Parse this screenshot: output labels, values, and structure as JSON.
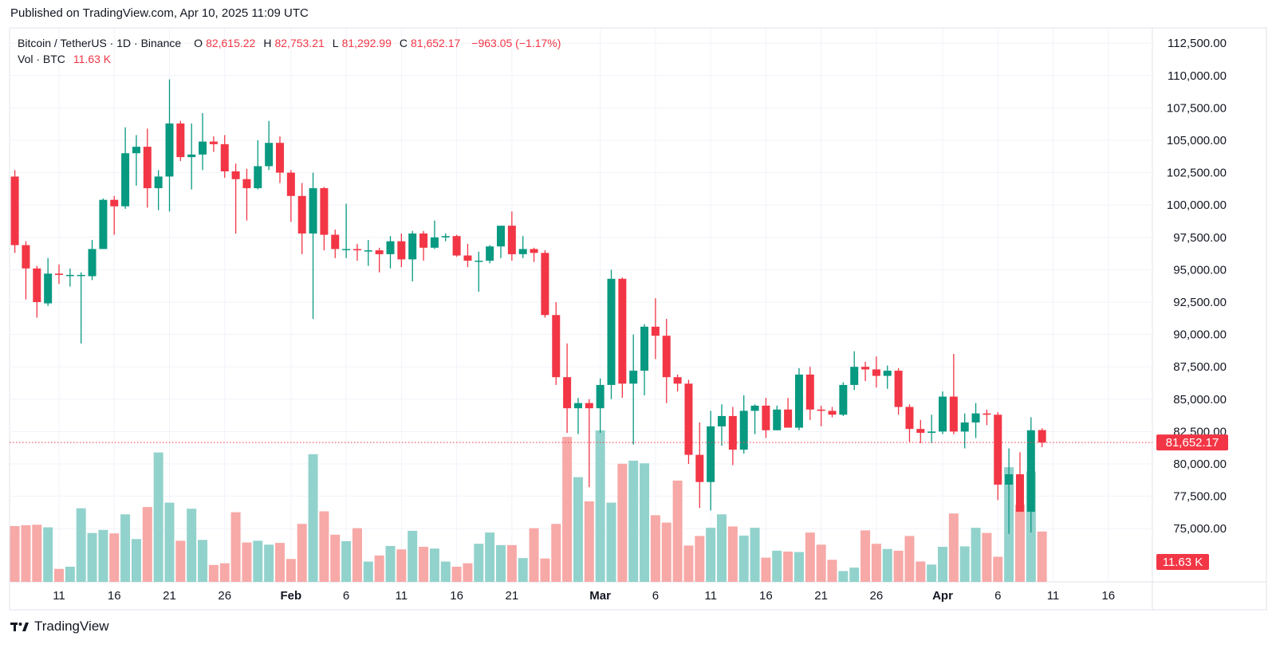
{
  "header": {
    "published": "Published on TradingView.com, Apr 10, 2025 11:09 UTC"
  },
  "legend": {
    "symbol": "Bitcoin / TetherUS · 1D · Binance",
    "open_key": "O",
    "open": "82,615.22",
    "high_key": "H",
    "high": "82,753.21",
    "low_key": "L",
    "low": "81,292.99",
    "close_key": "C",
    "close": "81,652.17",
    "change": "−963.05 (−1.17%)",
    "vol_label": "Vol · BTC",
    "vol_value": "11.63 K"
  },
  "price_tag": "81,652.17",
  "volume_tag": "11.63 K",
  "footer": {
    "brand": "TradingView"
  },
  "colors": {
    "up": "#089981",
    "down": "#f23645",
    "up_vol": "#92d2cc",
    "down_vol": "#f7a9a7"
  },
  "chart_data": {
    "type": "candlestick",
    "y_ticks": [
      "112,500.00",
      "110,000.00",
      "107,500.00",
      "105,000.00",
      "102,500.00",
      "100,000.00",
      "97,500.00",
      "95,000.00",
      "92,500.00",
      "90,000.00",
      "87,500.00",
      "85,000.00",
      "82,500.00",
      "80,000.00",
      "77,500.00",
      "75,000.00"
    ],
    "x_ticks": [
      "11",
      "16",
      "21",
      "26",
      "Feb",
      "6",
      "11",
      "16",
      "21",
      "Mar",
      "6",
      "11",
      "16",
      "21",
      "26",
      "Apr",
      "6",
      "11",
      "16"
    ],
    "x_tick_days": [
      0,
      5,
      10,
      15,
      21,
      26,
      31,
      36,
      41,
      49,
      54,
      59,
      64,
      69,
      74,
      80,
      85,
      90,
      95
    ],
    "y_range": [
      71000,
      113500
    ],
    "candles": [
      {
        "o": 102200,
        "h": 102700,
        "l": 96300,
        "c": 96900,
        "v": 12.9
      },
      {
        "o": 96900,
        "h": 97200,
        "l": 92700,
        "c": 95100,
        "v": 13.1
      },
      {
        "o": 95100,
        "h": 95300,
        "l": 91300,
        "c": 92500,
        "v": 13.2
      },
      {
        "o": 92400,
        "h": 95900,
        "l": 92200,
        "c": 94700,
        "v": 12.6
      },
      {
        "o": 94700,
        "h": 95400,
        "l": 93900,
        "c": 94600,
        "v": 3.0
      },
      {
        "o": 94600,
        "h": 95100,
        "l": 93700,
        "c": 94600,
        "v": 3.5
      },
      {
        "o": 94600,
        "h": 94800,
        "l": 89300,
        "c": 94600,
        "v": 17.0
      },
      {
        "o": 94500,
        "h": 97300,
        "l": 94200,
        "c": 96600,
        "v": 11.3
      },
      {
        "o": 96600,
        "h": 100500,
        "l": 96600,
        "c": 100400,
        "v": 12.0
      },
      {
        "o": 100400,
        "h": 100700,
        "l": 97700,
        "c": 99900,
        "v": 11.2
      },
      {
        "o": 99900,
        "h": 106000,
        "l": 99700,
        "c": 104000,
        "v": 15.6
      },
      {
        "o": 104000,
        "h": 105400,
        "l": 101500,
        "c": 104500,
        "v": 9.9
      },
      {
        "o": 104500,
        "h": 105900,
        "l": 99800,
        "c": 101300,
        "v": 17.3
      },
      {
        "o": 101300,
        "h": 102700,
        "l": 99600,
        "c": 102200,
        "v": 29.9
      },
      {
        "o": 102200,
        "h": 109700,
        "l": 99500,
        "c": 106300,
        "v": 18.3
      },
      {
        "o": 106300,
        "h": 106500,
        "l": 103400,
        "c": 103700,
        "v": 9.5
      },
      {
        "o": 103700,
        "h": 106300,
        "l": 101200,
        "c": 103900,
        "v": 16.9
      },
      {
        "o": 103900,
        "h": 107100,
        "l": 102700,
        "c": 104900,
        "v": 9.7
      },
      {
        "o": 104900,
        "h": 105300,
        "l": 104100,
        "c": 104700,
        "v": 3.9
      },
      {
        "o": 104700,
        "h": 105400,
        "l": 102100,
        "c": 102600,
        "v": 4.3
      },
      {
        "o": 102600,
        "h": 103200,
        "l": 97800,
        "c": 102000,
        "v": 16.1
      },
      {
        "o": 102000,
        "h": 102800,
        "l": 98800,
        "c": 101300,
        "v": 9.1
      },
      {
        "o": 101300,
        "h": 105000,
        "l": 101200,
        "c": 103000,
        "v": 9.5
      },
      {
        "o": 103000,
        "h": 106500,
        "l": 102700,
        "c": 104800,
        "v": 8.6
      },
      {
        "o": 104800,
        "h": 105300,
        "l": 101700,
        "c": 102500,
        "v": 9.0
      },
      {
        "o": 102500,
        "h": 102700,
        "l": 98700,
        "c": 100700,
        "v": 5.3
      },
      {
        "o": 100700,
        "h": 101700,
        "l": 96200,
        "c": 97800,
        "v": 13.4
      },
      {
        "o": 97800,
        "h": 102500,
        "l": 91200,
        "c": 101300,
        "v": 29.5
      },
      {
        "o": 101300,
        "h": 101400,
        "l": 96500,
        "c": 97700,
        "v": 16.3
      },
      {
        "o": 97700,
        "h": 98100,
        "l": 95900,
        "c": 96600,
        "v": 10.9
      },
      {
        "o": 96600,
        "h": 100100,
        "l": 95900,
        "c": 96600,
        "v": 9.4
      },
      {
        "o": 96600,
        "h": 97000,
        "l": 95700,
        "c": 96500,
        "v": 12.4
      },
      {
        "o": 96500,
        "h": 97300,
        "l": 95300,
        "c": 96500,
        "v": 4.7
      },
      {
        "o": 96500,
        "h": 96700,
        "l": 94800,
        "c": 96200,
        "v": 6.1
      },
      {
        "o": 96200,
        "h": 97600,
        "l": 95100,
        "c": 97200,
        "v": 8.3
      },
      {
        "o": 97200,
        "h": 97800,
        "l": 95200,
        "c": 95800,
        "v": 7.5
      },
      {
        "o": 95800,
        "h": 98000,
        "l": 94100,
        "c": 97800,
        "v": 11.8
      },
      {
        "o": 97800,
        "h": 98000,
        "l": 95700,
        "c": 96700,
        "v": 8.1
      },
      {
        "o": 96700,
        "h": 98800,
        "l": 96600,
        "c": 97500,
        "v": 7.7
      },
      {
        "o": 97500,
        "h": 97800,
        "l": 97200,
        "c": 97600,
        "v": 4.7
      },
      {
        "o": 97600,
        "h": 97700,
        "l": 96000,
        "c": 96100,
        "v": 3.5
      },
      {
        "o": 96100,
        "h": 97000,
        "l": 95200,
        "c": 95700,
        "v": 4.3
      },
      {
        "o": 95700,
        "h": 96400,
        "l": 93300,
        "c": 95700,
        "v": 8.8
      },
      {
        "o": 95700,
        "h": 96900,
        "l": 95500,
        "c": 96800,
        "v": 11.4
      },
      {
        "o": 96800,
        "h": 98400,
        "l": 95900,
        "c": 98400,
        "v": 8.5
      },
      {
        "o": 98400,
        "h": 99500,
        "l": 95700,
        "c": 96200,
        "v": 8.5
      },
      {
        "o": 96200,
        "h": 97600,
        "l": 95900,
        "c": 96600,
        "v": 5.5
      },
      {
        "o": 96600,
        "h": 96700,
        "l": 95600,
        "c": 96300,
        "v": 12.4
      },
      {
        "o": 96300,
        "h": 96500,
        "l": 91300,
        "c": 91500,
        "v": 5.4
      },
      {
        "o": 91500,
        "h": 92500,
        "l": 86100,
        "c": 86700,
        "v": 13.4
      },
      {
        "o": 86700,
        "h": 89300,
        "l": 82400,
        "c": 84300,
        "v": 33.5
      },
      {
        "o": 84300,
        "h": 85100,
        "l": 82300,
        "c": 84700,
        "v": 24.2
      },
      {
        "o": 84700,
        "h": 85000,
        "l": 78200,
        "c": 84300,
        "v": 18.6
      },
      {
        "o": 84300,
        "h": 86600,
        "l": 82400,
        "c": 86100,
        "v": 35.0
      },
      {
        "o": 86100,
        "h": 95000,
        "l": 85000,
        "c": 94300,
        "v": 18.3
      },
      {
        "o": 94300,
        "h": 94400,
        "l": 85100,
        "c": 86200,
        "v": 27.3
      },
      {
        "o": 86200,
        "h": 90000,
        "l": 81500,
        "c": 87200,
        "v": 28.0
      },
      {
        "o": 87200,
        "h": 90800,
        "l": 85300,
        "c": 90600,
        "v": 27.4
      },
      {
        "o": 90600,
        "h": 92800,
        "l": 88100,
        "c": 89900,
        "v": 15.4
      },
      {
        "o": 89900,
        "h": 91200,
        "l": 84700,
        "c": 86700,
        "v": 13.7
      },
      {
        "o": 86700,
        "h": 86900,
        "l": 85600,
        "c": 86200,
        "v": 23.4
      },
      {
        "o": 86200,
        "h": 86500,
        "l": 80000,
        "c": 80700,
        "v": 8.4
      },
      {
        "o": 80700,
        "h": 83200,
        "l": 76600,
        "c": 78600,
        "v": 10.6
      },
      {
        "o": 78600,
        "h": 84100,
        "l": 76400,
        "c": 82900,
        "v": 12.5
      },
      {
        "o": 82900,
        "h": 84600,
        "l": 81400,
        "c": 83700,
        "v": 15.6
      },
      {
        "o": 83700,
        "h": 84400,
        "l": 79900,
        "c": 81100,
        "v": 12.8
      },
      {
        "o": 81100,
        "h": 85300,
        "l": 80800,
        "c": 84100,
        "v": 10.7
      },
      {
        "o": 84100,
        "h": 84600,
        "l": 82300,
        "c": 84500,
        "v": 12.5
      },
      {
        "o": 84500,
        "h": 85100,
        "l": 82000,
        "c": 82600,
        "v": 5.6
      },
      {
        "o": 82600,
        "h": 84500,
        "l": 82600,
        "c": 84200,
        "v": 7.2
      },
      {
        "o": 84200,
        "h": 85100,
        "l": 83200,
        "c": 82800,
        "v": 7.0
      },
      {
        "o": 82800,
        "h": 87400,
        "l": 82600,
        "c": 86900,
        "v": 6.9
      },
      {
        "o": 86900,
        "h": 87500,
        "l": 83400,
        "c": 84200,
        "v": 11.4
      },
      {
        "o": 84200,
        "h": 84500,
        "l": 82900,
        "c": 84100,
        "v": 8.6
      },
      {
        "o": 84100,
        "h": 84400,
        "l": 83600,
        "c": 83800,
        "v": 5.1
      },
      {
        "o": 83800,
        "h": 86300,
        "l": 83700,
        "c": 86100,
        "v": 2.5
      },
      {
        "o": 86100,
        "h": 88700,
        "l": 85700,
        "c": 87500,
        "v": 3.3
      },
      {
        "o": 87500,
        "h": 87900,
        "l": 86400,
        "c": 87300,
        "v": 11.9
      },
      {
        "o": 87300,
        "h": 88300,
        "l": 85900,
        "c": 86800,
        "v": 8.8
      },
      {
        "o": 86800,
        "h": 87600,
        "l": 85800,
        "c": 87200,
        "v": 7.6
      },
      {
        "o": 87200,
        "h": 87400,
        "l": 83800,
        "c": 84400,
        "v": 7.2
      },
      {
        "o": 84400,
        "h": 84600,
        "l": 81700,
        "c": 82700,
        "v": 10.6
      },
      {
        "o": 82700,
        "h": 83400,
        "l": 81600,
        "c": 82400,
        "v": 4.7
      },
      {
        "o": 82400,
        "h": 83800,
        "l": 81600,
        "c": 82500,
        "v": 4.0
      },
      {
        "o": 82500,
        "h": 85600,
        "l": 82300,
        "c": 85200,
        "v": 8.1
      },
      {
        "o": 85200,
        "h": 88500,
        "l": 82300,
        "c": 82500,
        "v": 15.8
      },
      {
        "o": 82500,
        "h": 83900,
        "l": 81200,
        "c": 83200,
        "v": 8.2
      },
      {
        "o": 83200,
        "h": 84700,
        "l": 82000,
        "c": 83900,
        "v": 12.5
      },
      {
        "o": 83900,
        "h": 84200,
        "l": 83000,
        "c": 83800,
        "v": 11.3
      },
      {
        "o": 83800,
        "h": 84000,
        "l": 77200,
        "c": 78400,
        "v": 5.8
      },
      {
        "o": 78400,
        "h": 81200,
        "l": 74600,
        "c": 79200,
        "v": 26.5
      },
      {
        "o": 79200,
        "h": 80900,
        "l": 76300,
        "c": 76300,
        "v": 17.8
      },
      {
        "o": 76300,
        "h": 83600,
        "l": 74700,
        "c": 82600,
        "v": 25.5
      },
      {
        "o": 82615,
        "h": 82753,
        "l": 81293,
        "c": 81652,
        "v": 11.63
      }
    ]
  }
}
